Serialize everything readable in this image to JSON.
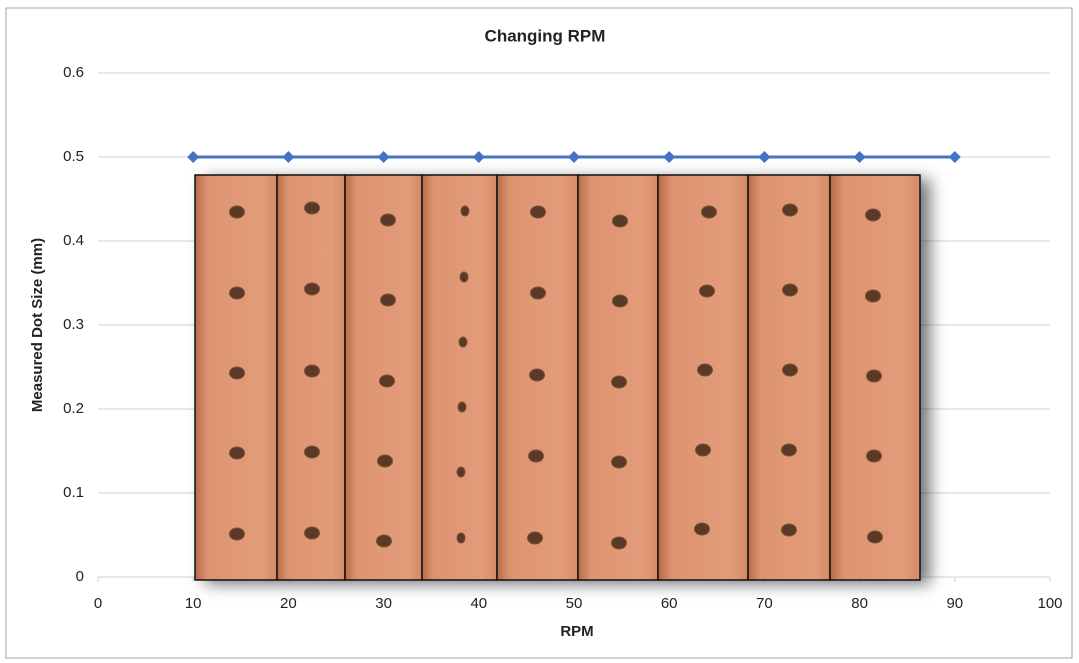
{
  "chart_data": {
    "type": "line",
    "title": "Changing RPM",
    "x_label": "RPM",
    "y_label": "Measured Dot Size (mm)",
    "x": [
      10,
      20,
      30,
      40,
      50,
      60,
      70,
      80,
      90
    ],
    "values": [
      0.5,
      0.5,
      0.5,
      0.5,
      0.5,
      0.5,
      0.5,
      0.5,
      0.5
    ],
    "color": "#4472c4",
    "xlim": [
      0,
      100
    ],
    "xticks": [
      0,
      10,
      20,
      30,
      40,
      50,
      60,
      70,
      80,
      90,
      100
    ],
    "ylim": [
      0,
      0.6
    ],
    "yticks": [
      0,
      0.1,
      0.2,
      0.3,
      0.4,
      0.5,
      0.6
    ],
    "grid": true
  }
}
